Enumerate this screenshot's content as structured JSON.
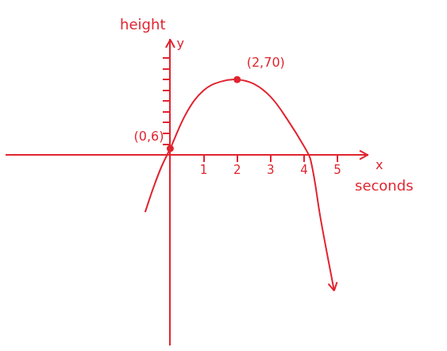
{
  "chart_data": {
    "type": "line",
    "xlabel": "seconds",
    "ylabel": "height",
    "axis_names": {
      "x": "x",
      "y": "y"
    },
    "x": [
      -0.75,
      -0.5,
      -0.25,
      0,
      0.5,
      1,
      1.5,
      2,
      2.5,
      3,
      3.5,
      4,
      4.2,
      4.5,
      4.9
    ],
    "values": [
      -53,
      -30,
      -10,
      6,
      40,
      60,
      68,
      70,
      66,
      54,
      33,
      8,
      -5,
      -60,
      -126
    ],
    "color": "#e0242f",
    "marker": "none",
    "points": {
      "x": [
        0,
        2
      ],
      "y": [
        6,
        70
      ],
      "labels": [
        "(0,6)",
        "(2,70)"
      ]
    },
    "xlim": [
      -4.9,
      5.9
    ],
    "ylim": [
      -176,
      107
    ],
    "xticks": [
      1,
      2,
      3,
      4,
      5
    ],
    "yticks": [
      10,
      20,
      30,
      40,
      50,
      60,
      70,
      80,
      90
    ],
    "tick_labels": "x",
    "grid": false
  }
}
